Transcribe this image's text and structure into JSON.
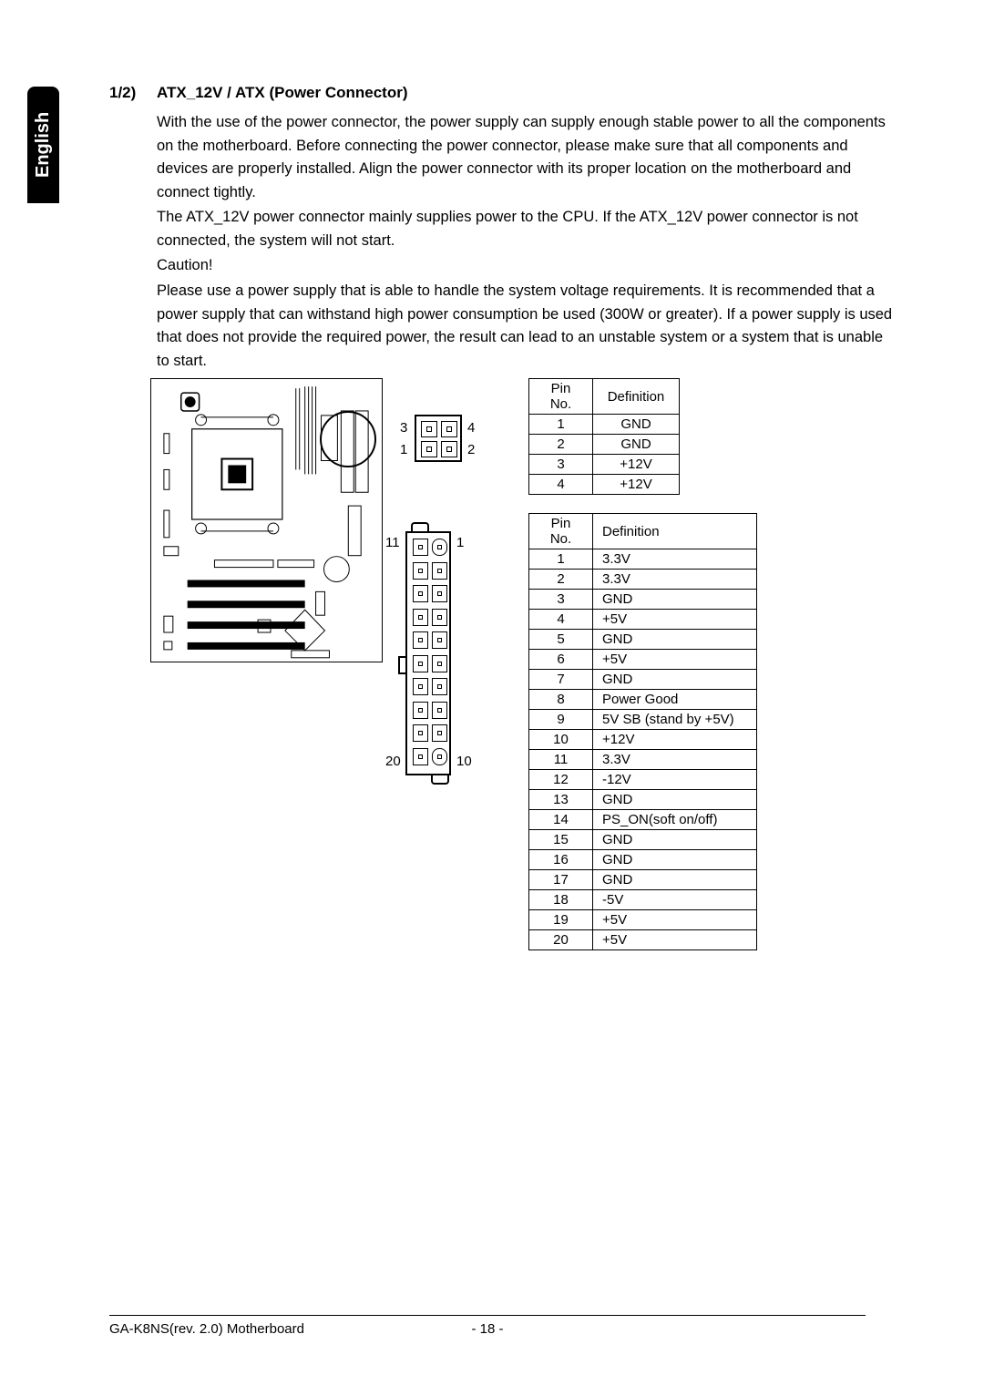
{
  "language_tab": "English",
  "section": {
    "number": "1/2)",
    "title": "ATX_12V / ATX (Power Connector)"
  },
  "paragraphs": {
    "p1": "With the use of the power connector, the power supply can supply enough stable power to all the components on the motherboard. Before connecting the power connector, please make sure that all components and devices are properly installed.  Align the power connector with its proper location on the motherboard and connect tightly.",
    "p2": "The ATX_12V power connector mainly supplies power to the CPU. If the ATX_12V power connector is not connected, the system will not start.",
    "p3": "Caution!",
    "p4": "Please use a power supply that is able to handle the system voltage requirements.  It is recommended that a power supply that can withstand high power consumption be used (300W or greater).  If a power supply is used that does not provide the required power, the result can lead to an unstable system or a system that is unable to start."
  },
  "conn4_labels": {
    "tl": "3",
    "tr": "4",
    "bl": "1",
    "br": "2"
  },
  "conn20_labels": {
    "tl": "11",
    "tr": "1",
    "bl": "20",
    "br": "10"
  },
  "table1": {
    "headers": [
      "Pin No.",
      "Definition"
    ],
    "rows": [
      [
        "1",
        "GND"
      ],
      [
        "2",
        "GND"
      ],
      [
        "3",
        "+12V"
      ],
      [
        "4",
        "+12V"
      ]
    ]
  },
  "table2": {
    "headers": [
      "Pin No.",
      "Definition"
    ],
    "rows": [
      [
        "1",
        "3.3V"
      ],
      [
        "2",
        "3.3V"
      ],
      [
        "3",
        "GND"
      ],
      [
        "4",
        "+5V"
      ],
      [
        "5",
        "GND"
      ],
      [
        "6",
        "+5V"
      ],
      [
        "7",
        "GND"
      ],
      [
        "8",
        "Power Good"
      ],
      [
        "9",
        "5V SB (stand by +5V)"
      ],
      [
        "10",
        "+12V"
      ],
      [
        "11",
        "3.3V"
      ],
      [
        "12",
        "-12V"
      ],
      [
        "13",
        "GND"
      ],
      [
        "14",
        "PS_ON(soft on/off)"
      ],
      [
        "15",
        "GND"
      ],
      [
        "16",
        "GND"
      ],
      [
        "17",
        "GND"
      ],
      [
        "18",
        "-5V"
      ],
      [
        "19",
        "+5V"
      ],
      [
        "20",
        "+5V"
      ]
    ]
  },
  "footer": {
    "left": "GA-K8NS(rev. 2.0) Motherboard",
    "center": "- 18 -"
  },
  "colors": {
    "text": "#000000",
    "bg": "#ffffff",
    "tab_bg": "#000000",
    "tab_fg": "#ffffff"
  }
}
